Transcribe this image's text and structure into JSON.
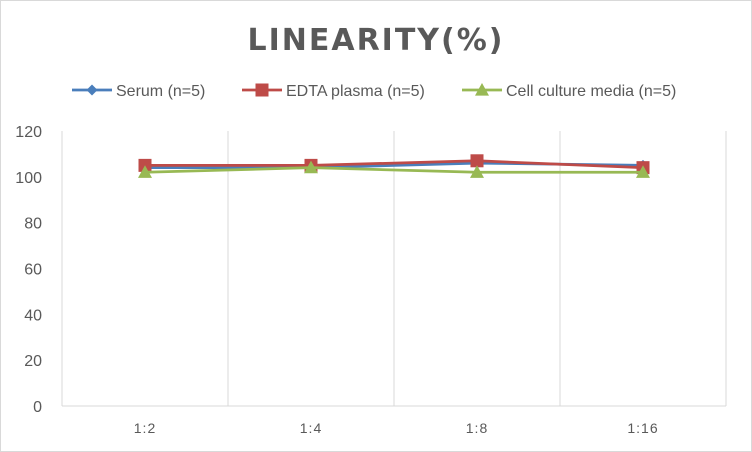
{
  "chart_data": {
    "type": "line",
    "title": "LINEARITY(%)",
    "xlabel": "",
    "ylabel": "",
    "categories": [
      "1:2",
      "1:4",
      "1:8",
      "1:16"
    ],
    "ylim": [
      0,
      120
    ],
    "yticks": [
      0,
      20,
      40,
      60,
      80,
      100,
      120
    ],
    "grid": "vertical",
    "legend_position": "top",
    "series": [
      {
        "name": "Serum (n=5)",
        "values": [
          104,
          104,
          106,
          105
        ],
        "color": "#4a7ebb",
        "marker": "diamond"
      },
      {
        "name": "EDTA plasma (n=5)",
        "values": [
          105,
          105,
          107,
          104
        ],
        "color": "#be4b48",
        "marker": "square"
      },
      {
        "name": "Cell culture media (n=5)",
        "values": [
          102,
          104,
          102,
          102
        ],
        "color": "#98b954",
        "marker": "triangle"
      }
    ]
  }
}
